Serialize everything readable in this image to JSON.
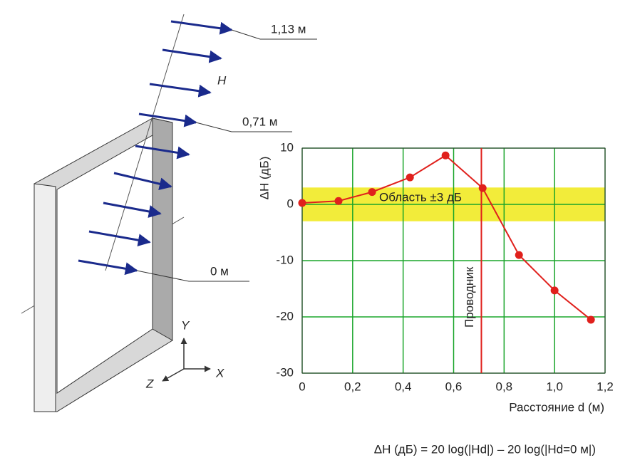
{
  "diagram": {
    "labels": [
      "1,13 м",
      "0,71 м",
      "0 м"
    ],
    "field": "H",
    "axes": [
      "Y",
      "Z",
      "X"
    ]
  },
  "chart_data": {
    "type": "line",
    "ylabel": "ΔH (дБ)",
    "xlabel": "Расстояние d (м)",
    "formula": "ΔH (дБ) = 20 log(|Hd|) – 20 log(|Hd=0 м|)",
    "series": [
      {
        "name": "ΔH",
        "color": "#e0201c",
        "x": [
          0,
          0.144,
          0.277,
          0.427,
          0.568,
          0.715,
          0.859,
          1.0,
          1.144
        ],
        "values": [
          0.25,
          0.6,
          2.2,
          4.8,
          8.7,
          2.9,
          -9,
          -15.3,
          -20.5
        ]
      }
    ],
    "band": [
      -3,
      3
    ],
    "band_color": "#f2ec3a",
    "band_label": "Область ±3 дБ",
    "vline": 0.71,
    "vline_label": "Проводник",
    "xlim": [
      0,
      1.2
    ],
    "ylim": [
      -30,
      10
    ],
    "xticks": [
      0,
      {
        "value": 0.2,
        "label": "0,2"
      },
      {
        "value": 0.4,
        "label": "0,4"
      },
      {
        "value": 0.6,
        "label": "0,6"
      },
      {
        "value": 0.8,
        "label": "0,8"
      },
      {
        "value": 1.0,
        "label": "1,0"
      },
      {
        "value": 1.2,
        "label": "1,2"
      }
    ],
    "yticks": [
      10,
      0,
      -10,
      -20,
      -30
    ],
    "grid": true,
    "grid_color": "#1aa52a"
  }
}
